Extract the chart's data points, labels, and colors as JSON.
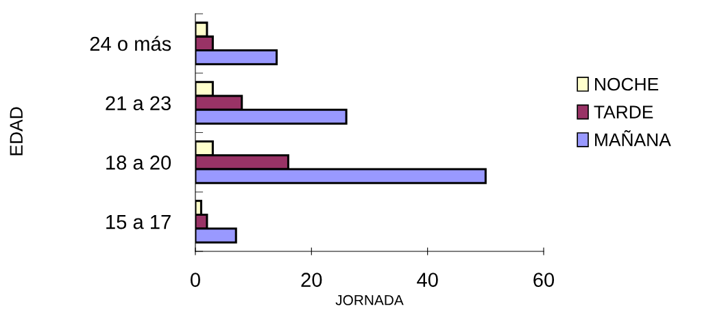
{
  "chart_data": {
    "type": "bar",
    "orientation": "horizontal",
    "xlabel": "JORNADA",
    "ylabel": "EDAD",
    "categories": [
      "24 o más",
      "21 a 23",
      "18 a 20",
      "15 a 17"
    ],
    "series": [
      {
        "name": "NOCHE",
        "color": "#ffffcc",
        "values": [
          2,
          3,
          3,
          1
        ]
      },
      {
        "name": "TARDE",
        "color": "#993366",
        "values": [
          3,
          8,
          16,
          2
        ]
      },
      {
        "name": "MAÑANA",
        "color": "#9999ff",
        "values": [
          14,
          26,
          50,
          7
        ]
      }
    ],
    "xlim": [
      0,
      60
    ],
    "xticks": [
      0,
      20,
      40,
      60
    ],
    "grid": false,
    "legend": "right"
  }
}
